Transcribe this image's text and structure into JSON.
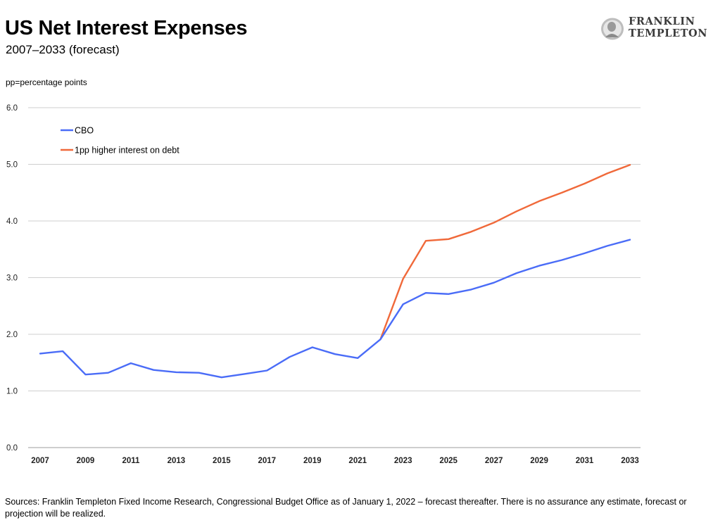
{
  "header": {
    "title": "US Net Interest Expenses",
    "subtitle": "2007–2033 (forecast)",
    "note": "pp=percentage points"
  },
  "logo": {
    "line1": "FRANKLIN",
    "line2": "TEMPLETON",
    "alt": "Franklin Templeton"
  },
  "footer": {
    "source": "Sources: Franklin Templeton Fixed Income Research, Congressional Budget Office as of January 1, 2022 – forecast thereafter. There is no assurance any estimate, forecast or projection will be realized."
  },
  "chart_data": {
    "type": "line",
    "title": "US Net Interest Expenses",
    "xlabel": "",
    "ylabel": "",
    "x": [
      2007,
      2008,
      2009,
      2010,
      2011,
      2012,
      2013,
      2014,
      2015,
      2016,
      2017,
      2018,
      2019,
      2020,
      2021,
      2022,
      2023,
      2024,
      2025,
      2026,
      2027,
      2028,
      2029,
      2030,
      2031,
      2032,
      2033
    ],
    "xticks": [
      "2007",
      "2009",
      "2011",
      "2013",
      "2015",
      "2017",
      "2019",
      "2021",
      "2023",
      "2025",
      "2027",
      "2029",
      "2031",
      "2033"
    ],
    "ylim": [
      0,
      6
    ],
    "yticks": [
      "0.0",
      "1.0",
      "2.0",
      "3.0",
      "4.0",
      "5.0",
      "6.0"
    ],
    "grid": true,
    "legend_position": "top-left",
    "series": [
      {
        "name": "CBO",
        "color": "#4a6cf7",
        "values": [
          1.66,
          1.7,
          1.29,
          1.32,
          1.49,
          1.37,
          1.33,
          1.32,
          1.24,
          1.3,
          1.36,
          1.6,
          1.77,
          1.65,
          1.58,
          1.91,
          2.53,
          2.73,
          2.71,
          2.79,
          2.91,
          3.08,
          3.21,
          3.31,
          3.43,
          3.56,
          3.67
        ]
      },
      {
        "name": "1pp higher interest on debt",
        "color": "#f0693a",
        "values": [
          null,
          null,
          null,
          null,
          null,
          null,
          null,
          null,
          null,
          null,
          null,
          null,
          null,
          null,
          null,
          1.91,
          2.98,
          3.65,
          3.68,
          3.81,
          3.97,
          4.17,
          4.35,
          4.5,
          4.66,
          4.84,
          4.99
        ]
      }
    ]
  }
}
